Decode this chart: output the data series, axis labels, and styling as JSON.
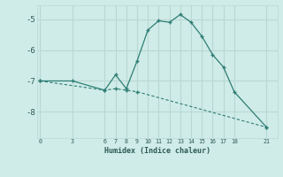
{
  "line1_x": [
    0,
    3,
    6,
    7,
    8,
    9,
    10,
    11,
    12,
    13,
    14,
    15,
    16,
    17,
    18,
    21
  ],
  "line1_y": [
    -7.0,
    -7.0,
    -7.3,
    -6.8,
    -7.25,
    -6.35,
    -5.35,
    -5.05,
    -5.1,
    -4.85,
    -5.1,
    -5.55,
    -6.15,
    -6.55,
    -7.35,
    -8.5
  ],
  "line2_x": [
    0,
    6,
    7,
    8,
    9,
    21
  ],
  "line2_y": [
    -7.0,
    -7.3,
    -7.25,
    -7.3,
    -7.35,
    -8.5
  ],
  "color": "#2d7d74",
  "bg_color": "#d0ece8",
  "grid_color": "#b8d8d4",
  "xlabel": "Humidex (Indice chaleur)",
  "xticks": [
    0,
    3,
    6,
    7,
    8,
    9,
    10,
    11,
    12,
    13,
    14,
    15,
    16,
    17,
    18,
    21
  ],
  "yticks": [
    -5,
    -6,
    -7,
    -8
  ],
  "xlim": [
    -0.3,
    22.0
  ],
  "ylim": [
    -8.85,
    -4.55
  ]
}
